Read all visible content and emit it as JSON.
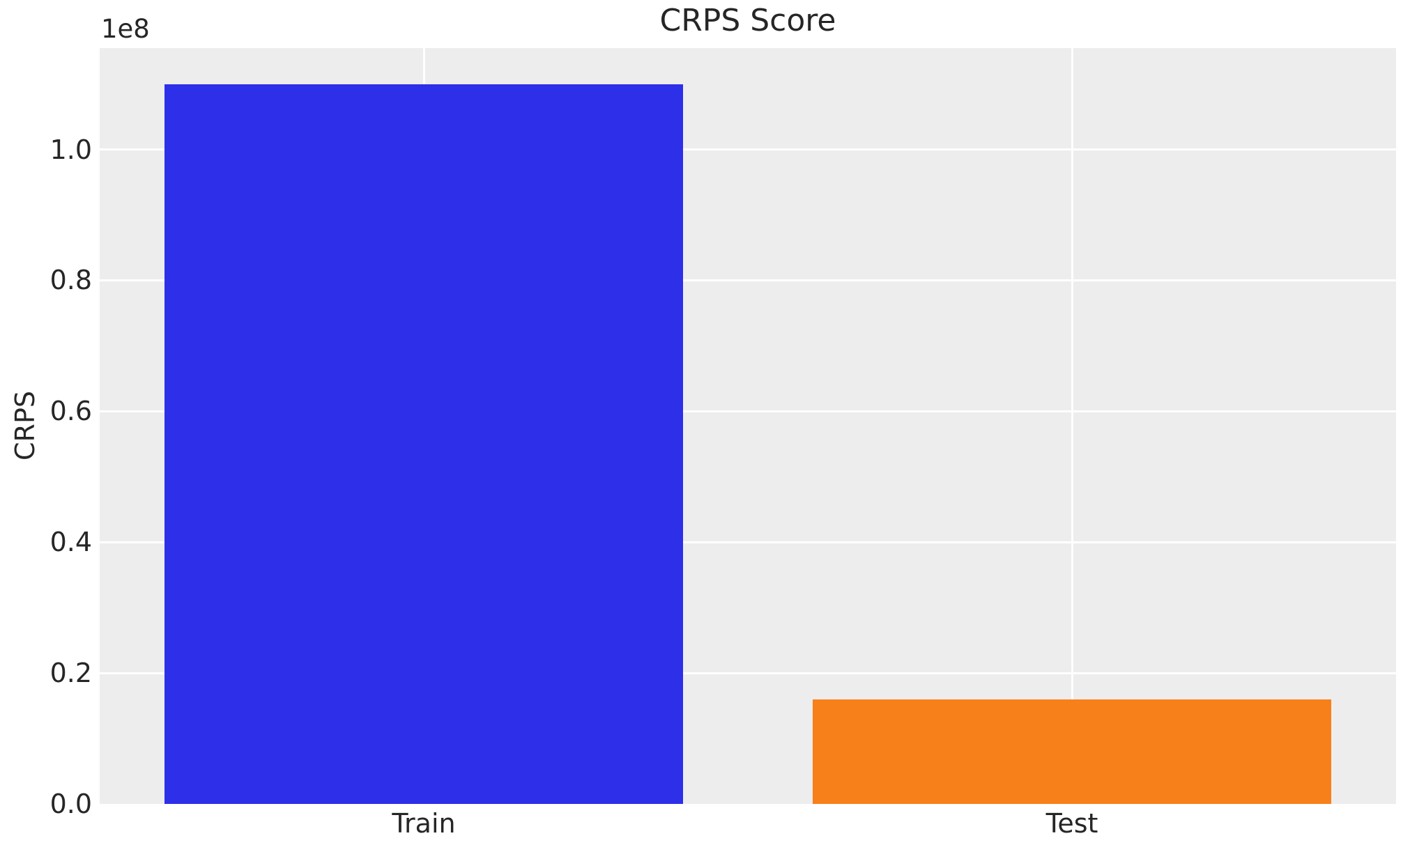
{
  "chart_data": {
    "type": "bar",
    "title": "CRPS Score",
    "ylabel": "CRPS",
    "xlabel": "",
    "offset_label": "1e8",
    "categories": [
      "Train",
      "Test"
    ],
    "values": [
      110000000,
      16000000
    ],
    "bar_colors": [
      "#2d2fe9",
      "#f8801a"
    ],
    "ylim": [
      0,
      115500000
    ],
    "yticks": [
      {
        "value": 0,
        "label": "0.0"
      },
      {
        "value": 20000000,
        "label": "0.2"
      },
      {
        "value": 40000000,
        "label": "0.4"
      },
      {
        "value": 60000000,
        "label": "0.6"
      },
      {
        "value": 80000000,
        "label": "0.8"
      },
      {
        "value": 100000000,
        "label": "1.0"
      }
    ],
    "grid": "on",
    "legend": "none",
    "plot_background": "#ededed",
    "grid_color": "#ffffff",
    "text_color": "#262626",
    "bar_width_fraction": 0.4
  }
}
